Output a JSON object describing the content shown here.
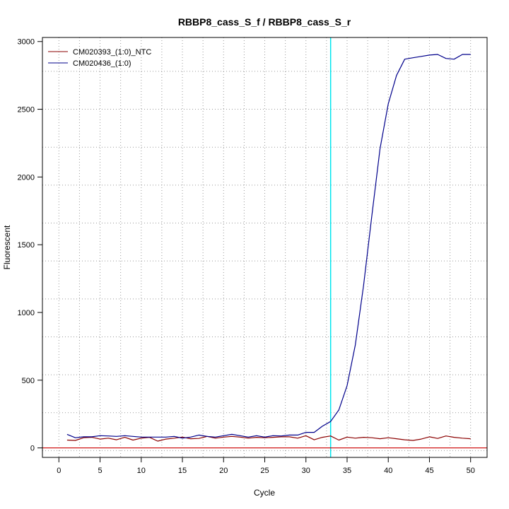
{
  "chart_data": {
    "type": "line",
    "title": "RBBP8_cass_S_f / RBBP8_cass_S_r",
    "xlabel": "Cycle",
    "ylabel": "Fluorescent",
    "xlim": [
      -2,
      52
    ],
    "ylim": [
      -70,
      3030
    ],
    "x_ticks": [
      0,
      5,
      10,
      15,
      20,
      25,
      30,
      35,
      40,
      45,
      50
    ],
    "y_ticks": [
      0,
      500,
      1000,
      1500,
      2000,
      2500,
      3000
    ],
    "x_grid": [
      0,
      2.5,
      5,
      7.5,
      10,
      12.5,
      15,
      17.5,
      20,
      22.5,
      25,
      27.5,
      30,
      32.5,
      35,
      37.5,
      40,
      42.5,
      45,
      47.5,
      50
    ],
    "y_grid": [
      -20,
      260,
      540,
      820,
      1100,
      1380,
      1660,
      1940,
      2220,
      2500,
      2780
    ],
    "grid": true,
    "legend_position": "top-left",
    "threshold": {
      "x": 33,
      "color": "#00e5ee"
    },
    "baseline": {
      "y": 0,
      "color": "#cc0000"
    },
    "series": [
      {
        "name": "CM020393_(1:0)_NTC",
        "color": "#8b0000",
        "x": [
          1,
          2,
          3,
          4,
          5,
          6,
          7,
          8,
          9,
          10,
          11,
          12,
          13,
          14,
          15,
          16,
          17,
          18,
          19,
          20,
          21,
          22,
          23,
          24,
          25,
          26,
          27,
          28,
          29,
          30,
          31,
          32,
          33,
          34,
          35,
          36,
          37,
          38,
          39,
          40,
          41,
          42,
          43,
          44,
          45,
          46,
          47,
          48,
          49,
          50
        ],
        "values": [
          58,
          55,
          75,
          78,
          65,
          72,
          60,
          78,
          58,
          72,
          78,
          50,
          65,
          72,
          80,
          68,
          70,
          85,
          72,
          80,
          85,
          80,
          72,
          78,
          75,
          78,
          82,
          82,
          72,
          90,
          60,
          78,
          88,
          58,
          80,
          72,
          78,
          75,
          68,
          75,
          68,
          60,
          55,
          65,
          82,
          70,
          88,
          78,
          72,
          68
        ]
      },
      {
        "name": "CM020436_(1:0)",
        "color": "#00008b",
        "x": [
          1,
          2,
          3,
          4,
          5,
          6,
          7,
          8,
          9,
          10,
          11,
          12,
          13,
          14,
          15,
          16,
          17,
          18,
          19,
          20,
          21,
          22,
          23,
          24,
          25,
          26,
          27,
          28,
          29,
          30,
          31,
          32,
          33,
          34,
          35,
          36,
          37,
          38,
          39,
          40,
          41,
          42,
          43,
          44,
          45,
          46,
          47,
          48,
          49,
          50
        ],
        "values": [
          100,
          75,
          82,
          82,
          90,
          88,
          85,
          90,
          85,
          80,
          80,
          80,
          80,
          85,
          72,
          80,
          95,
          85,
          80,
          90,
          100,
          90,
          80,
          90,
          80,
          90,
          88,
          95,
          95,
          115,
          115,
          160,
          195,
          280,
          460,
          760,
          1200,
          1710,
          2210,
          2540,
          2750,
          2870,
          2880,
          2890,
          2900,
          2905,
          2875,
          2870,
          2905,
          2905
        ]
      }
    ]
  }
}
